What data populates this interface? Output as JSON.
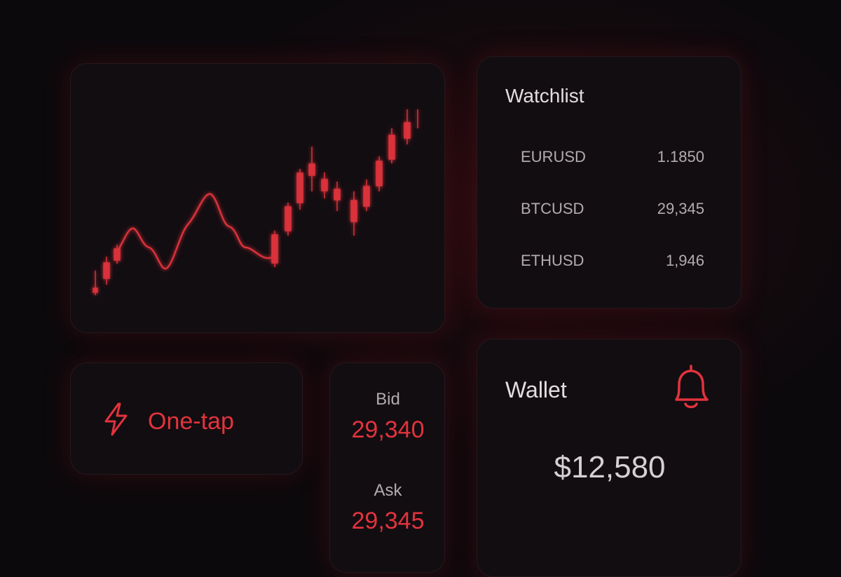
{
  "watchlist": {
    "title": "Watchlist",
    "rows": [
      [
        "EURUSD",
        "1.1850"
      ],
      [
        "BTCUSD",
        "29,345"
      ],
      [
        "ETHUSD",
        "1,946"
      ]
    ]
  },
  "one_tap": {
    "label": "One-tap"
  },
  "quote": {
    "bid_label": "Bid",
    "bid": "29,340",
    "ask_label": "Ask",
    "ask": "29,345"
  },
  "wallet": {
    "title": "Wallet",
    "balance": "$12,580"
  }
}
